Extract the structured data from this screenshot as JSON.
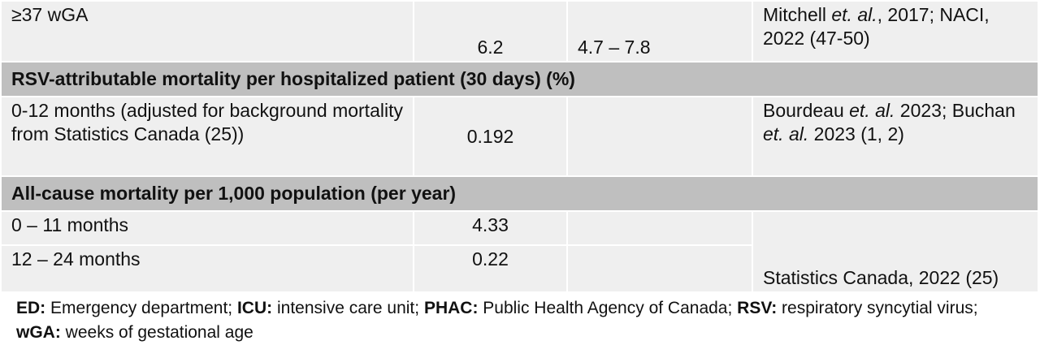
{
  "table": {
    "rows": [
      {
        "label": "≥37 wGA",
        "value": "6.2",
        "range": "4.7 – 7.8",
        "source": [
          "Mitchell ",
          "et. al.",
          ", 2017; NACI, 2022 (47-50)"
        ]
      },
      {
        "section": "RSV-attributable mortality per hospitalized patient (30 days) (%)"
      },
      {
        "label": "0-12 months (adjusted for background mortality from Statistics Canada (25))",
        "value": "0.192",
        "source": [
          "Bourdeau ",
          "et. al.",
          " 2023; Buchan ",
          "et. al.",
          " 2023 (1, 2)"
        ]
      },
      {
        "section": "All-cause mortality per 1,000 population (per year)"
      },
      {
        "label": "0 – 11 months",
        "value": "4.33",
        "source": "Statistics Canada, 2022 (25)"
      },
      {
        "label": "12 – 24 months",
        "value": "0.22"
      }
    ]
  },
  "footnote": [
    {
      "term": "ED:",
      "definition": "Emergency department;"
    },
    {
      "term": "ICU:",
      "definition": "intensive care unit;"
    },
    {
      "term": "PHAC:",
      "definition": "Public Health Agency of Canada;"
    },
    {
      "term": "RSV:",
      "definition": "respiratory syncytial virus;"
    },
    {
      "term": "wGA:",
      "definition": "weeks of gestational age"
    }
  ]
}
